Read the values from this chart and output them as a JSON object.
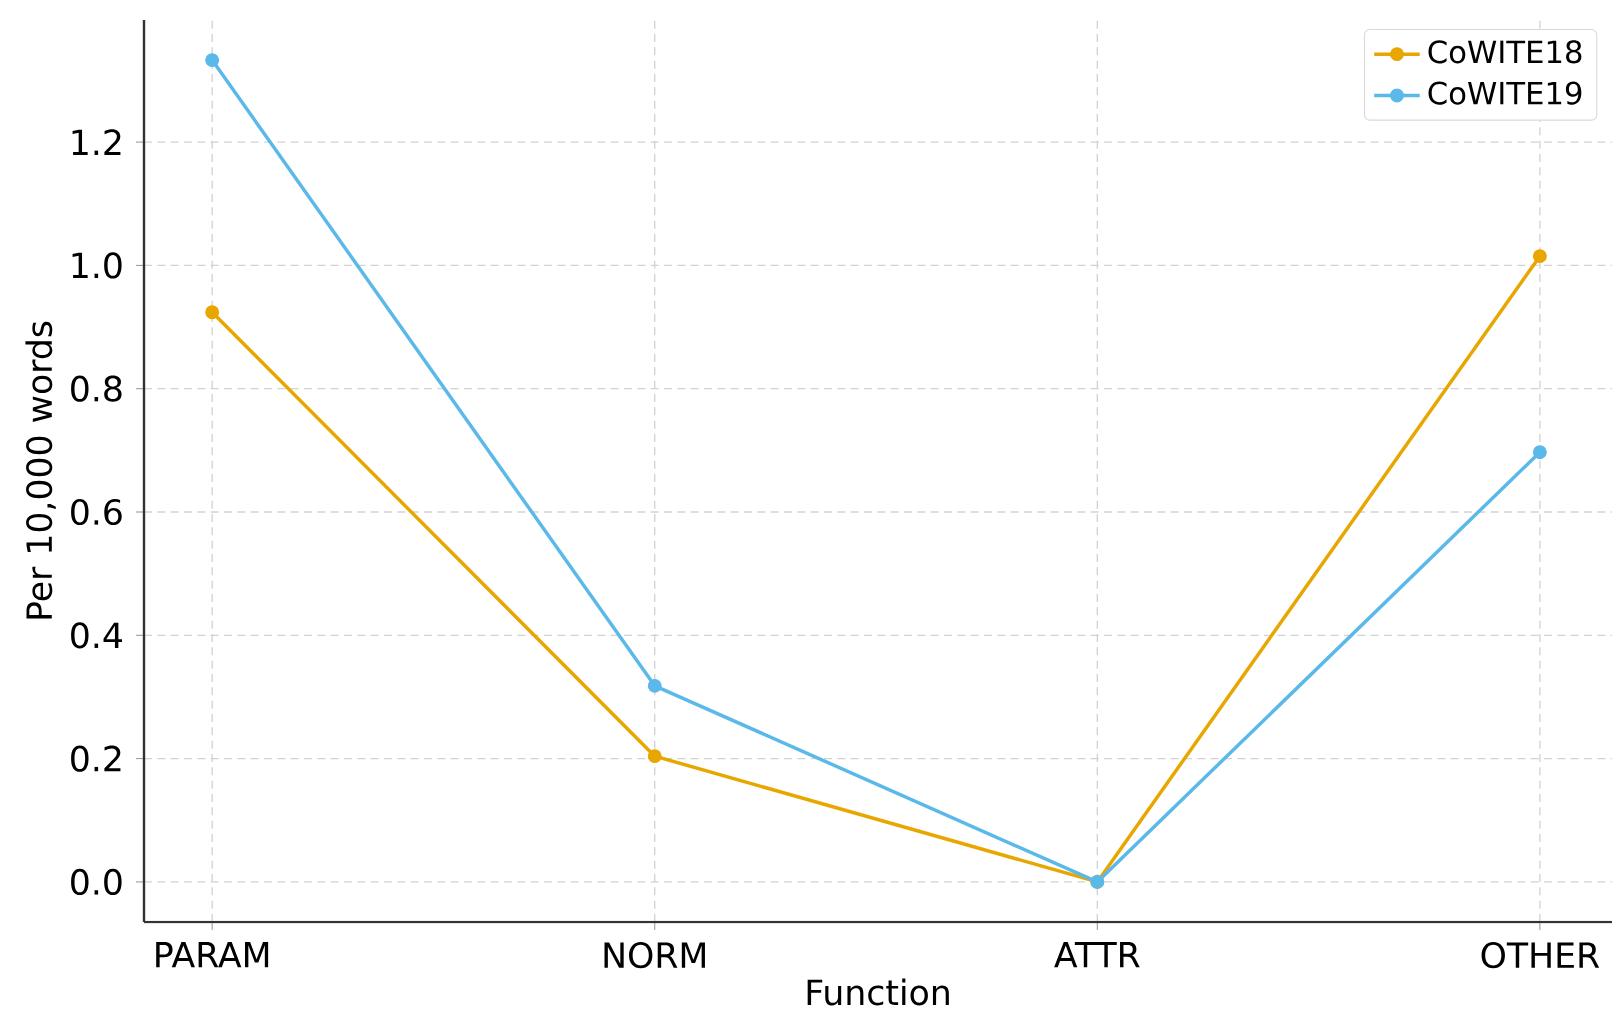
{
  "chart_data": {
    "type": "line",
    "xlabel": "Function",
    "ylabel": "Per 10,000 words",
    "categories": [
      "PARAM",
      "NORM",
      "ATTR",
      "OTHER"
    ],
    "series": [
      {
        "name": "CoWITE18",
        "color": "#e8a600",
        "values": [
          0.924,
          0.204,
          0.0,
          1.015
        ]
      },
      {
        "name": "CoWITE19",
        "color": "#5bb9ea",
        "values": [
          1.333,
          0.318,
          0.0,
          0.697
        ]
      }
    ],
    "ylim": [
      -0.065,
      1.398
    ],
    "yticks": [
      {
        "value": 0.0,
        "label": "0.0"
      },
      {
        "value": 0.2,
        "label": "0.2"
      },
      {
        "value": 0.4,
        "label": "0.4"
      },
      {
        "value": 0.6,
        "label": "0.6"
      },
      {
        "value": 0.8,
        "label": "0.8"
      },
      {
        "value": 1.0,
        "label": "1.0"
      },
      {
        "value": 1.2,
        "label": "1.2"
      }
    ],
    "grid": true,
    "legend": "top right",
    "marker": "circle",
    "line_style": "solid"
  }
}
